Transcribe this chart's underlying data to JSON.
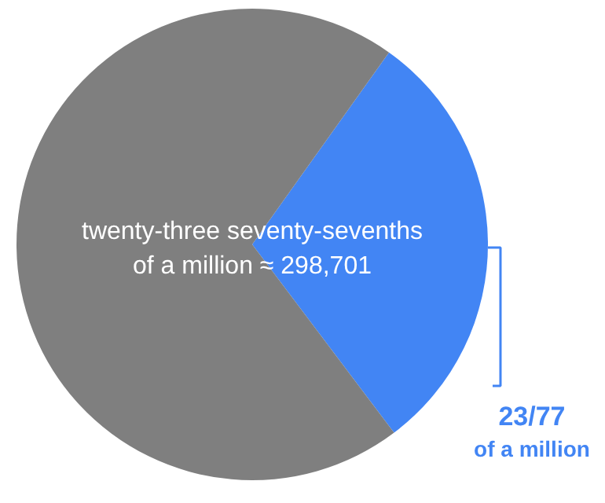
{
  "chart_data": {
    "type": "pie",
    "categories": [
      "23/77\nof a million",
      null
    ],
    "values": [
      29.87,
      70.13
    ],
    "colors": [
      "#4285f4",
      "#7f7f7f"
    ],
    "annotations": [
      "twenty-three seventy-sevenths\nof a million ≈ 298,701"
    ]
  }
}
